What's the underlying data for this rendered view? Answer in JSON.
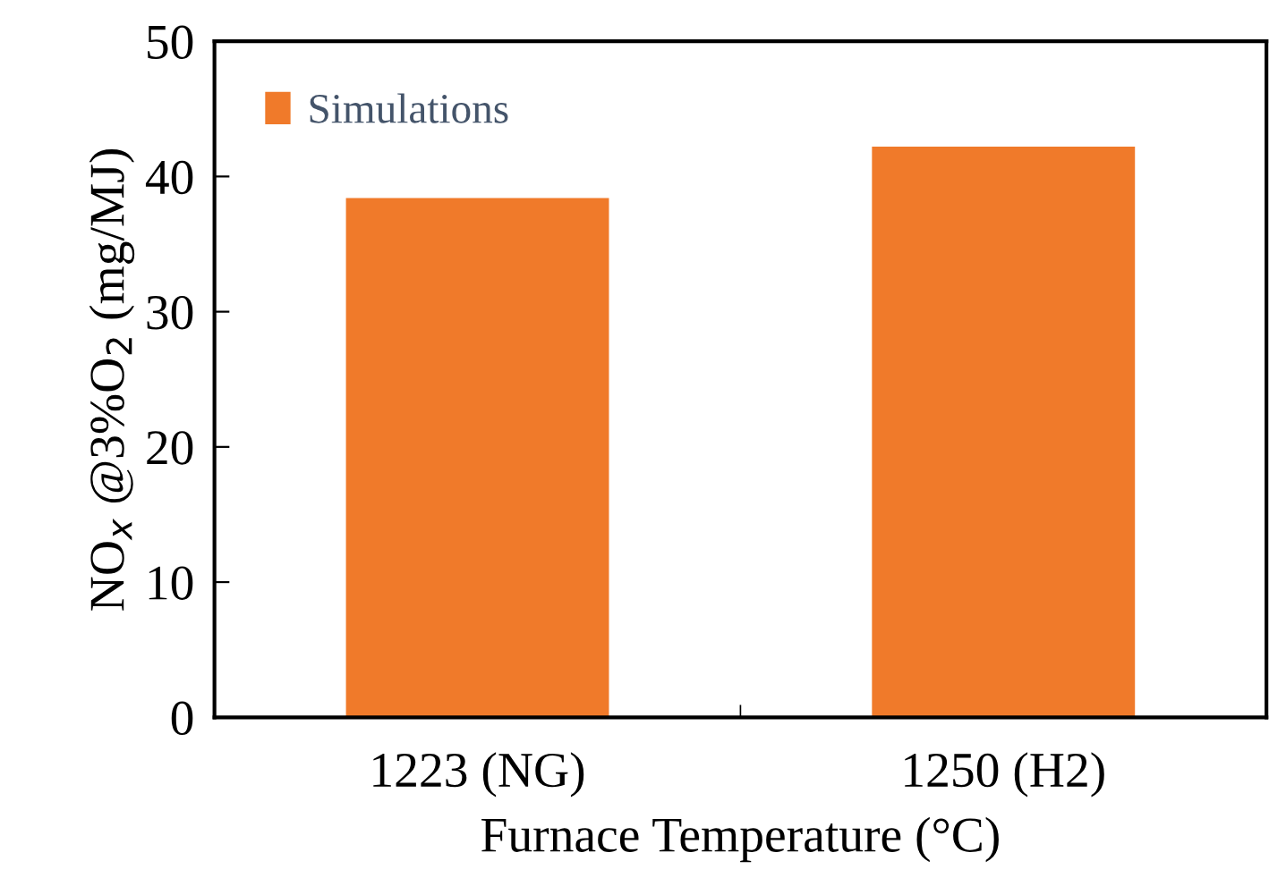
{
  "chart_data": {
    "type": "bar",
    "xlabel": "Furnace Temperature (°C)",
    "ylabel": "NO$_{x}$ @3%O$_{2}$ (mg/MJ)",
    "categories": [
      "1223 (NG)",
      "1250 (H2)"
    ],
    "series": [
      {
        "name": "Simulations",
        "color": "#f07a2a",
        "values": [
          38.4,
          42.2
        ]
      }
    ],
    "ylim": [
      0,
      50
    ],
    "yticks": [
      0,
      10,
      20,
      30,
      40,
      50
    ],
    "grid": false,
    "legend": "top left"
  }
}
